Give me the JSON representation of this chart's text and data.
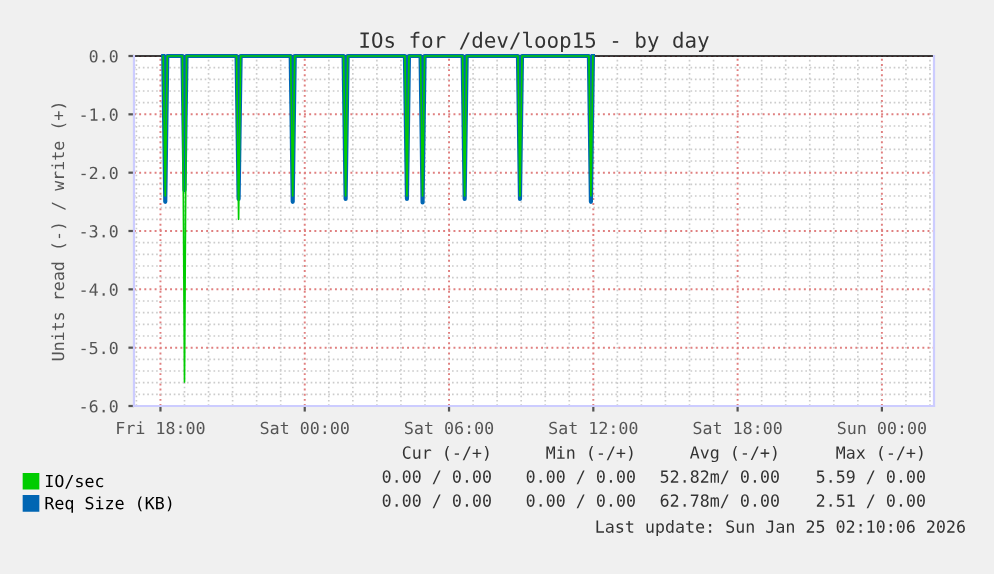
{
  "chart_data": {
    "type": "line",
    "title": "IOs for /dev/loop15 - by day",
    "ylabel": "Units read (-) / write (+)",
    "xlim": [
      "2026-01-23T16:54",
      "2026-01-25T02:10"
    ],
    "xticks": [
      {
        "value": "2026-01-23T18:00",
        "label": "Fri 18:00"
      },
      {
        "value": "2026-01-24T00:00",
        "label": "Sat 00:00"
      },
      {
        "value": "2026-01-24T06:00",
        "label": "Sat 06:00"
      },
      {
        "value": "2026-01-24T12:00",
        "label": "Sat 12:00"
      },
      {
        "value": "2026-01-24T18:00",
        "label": "Sat 18:00"
      },
      {
        "value": "2026-01-25T00:00",
        "label": "Sun 00:00"
      }
    ],
    "ylim": [
      -6,
      0
    ],
    "yticks": [
      {
        "value": -6,
        "label": "-6.0"
      },
      {
        "value": -5,
        "label": "-5.0"
      },
      {
        "value": -4,
        "label": "-4.0"
      },
      {
        "value": -3,
        "label": "-3.0"
      },
      {
        "value": -2,
        "label": "-2.0"
      },
      {
        "value": -1,
        "label": "-1.0"
      },
      {
        "value": 0,
        "label": "0.0"
      }
    ],
    "grid": true,
    "legend": "bottom",
    "x": [
      "2026-01-23T18:07",
      "2026-01-23T18:12",
      "2026-01-23T18:17",
      "2026-01-23T18:55",
      "2026-01-23T19:00",
      "2026-01-23T19:05",
      "2026-01-23T21:10",
      "2026-01-23T21:15",
      "2026-01-23T21:20",
      "2026-01-23T23:25",
      "2026-01-23T23:30",
      "2026-01-23T23:35",
      "2026-01-24T01:37",
      "2026-01-24T01:42",
      "2026-01-24T01:47",
      "2026-01-24T04:10",
      "2026-01-24T04:15",
      "2026-01-24T04:20",
      "2026-01-24T04:49",
      "2026-01-24T04:54",
      "2026-01-24T04:59",
      "2026-01-24T06:34",
      "2026-01-24T06:39",
      "2026-01-24T06:44",
      "2026-01-24T08:52",
      "2026-01-24T08:57",
      "2026-01-24T09:02",
      "2026-01-24T11:49",
      "2026-01-24T11:54",
      "2026-01-24T11:59"
    ],
    "series": [
      {
        "name": "IO/sec",
        "color": "#00cc00",
        "values": [
          0,
          -2.4,
          0,
          0,
          -5.59,
          0,
          0,
          -2.8,
          0,
          0,
          -2.4,
          0,
          0,
          -2.4,
          0,
          0,
          -2.4,
          0,
          0,
          -2.4,
          0,
          0,
          -2.4,
          0,
          0,
          -2.4,
          0,
          0,
          -2.4,
          0
        ]
      },
      {
        "name": "Req Size (KB)",
        "color": "#0066b3",
        "values": [
          0,
          -2.5,
          0,
          0,
          -2.3,
          0,
          0,
          -2.45,
          0,
          0,
          -2.5,
          0,
          0,
          -2.45,
          0,
          0,
          -2.45,
          0,
          0,
          -2.51,
          0,
          0,
          -2.45,
          0,
          0,
          -2.45,
          0,
          0,
          -2.5,
          0
        ]
      }
    ],
    "annotations": [
      "Cur (-/+)",
      "Min (-/+)",
      "Avg (-/+)",
      "Max (-/+)",
      "0.00 / 0.00",
      "0.00 / 0.00",
      "52.82m/ 0.00",
      "5.59 / 0.00",
      "0.00 / 0.00",
      "0.00 / 0.00",
      "62.78m/ 0.00",
      "2.51 / 0.00",
      "Last update: Sun Jan 25 02:10:06 2026"
    ]
  }
}
